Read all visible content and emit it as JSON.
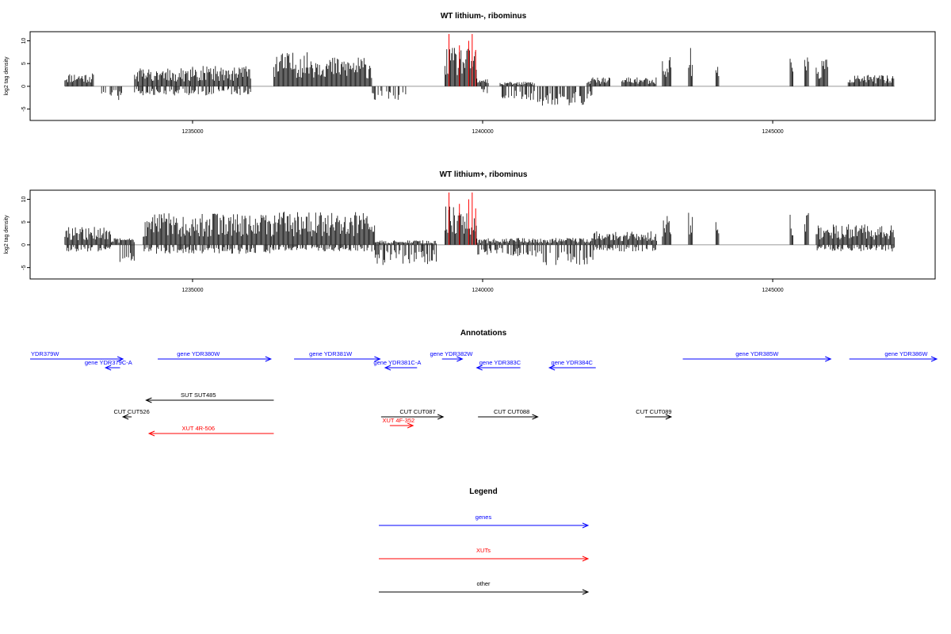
{
  "page": {
    "plot1_title": "WT lithium-, ribominus",
    "plot2_title": "WT lithium+, ribominus",
    "annotations_title": "Annotations",
    "legend_title": "Legend"
  },
  "chart_data": [
    {
      "type": "bar",
      "title": "WT lithium-, ribominus",
      "ylabel": "log2 tag density",
      "xlabel": "",
      "xlim": [
        1232200,
        1247800
      ],
      "ylim": [
        -7.5,
        12
      ],
      "x_ticks": [
        "1235000",
        "1240000",
        "1245000"
      ],
      "y_ticks": [
        "-5",
        "0",
        "5",
        "10"
      ],
      "grid": false,
      "series": [
        {
          "color": "#000000",
          "segments": [
            {
              "start": 1232800,
              "end": 1233300,
              "pos": 3,
              "neg": 0
            },
            {
              "start": 1233300,
              "end": 1233400,
              "pos": 0,
              "neg": 0
            },
            {
              "start": 1233400,
              "end": 1233800,
              "pos": 0,
              "neg": -3
            },
            {
              "start": 1234000,
              "end": 1235000,
              "pos": 4,
              "neg": -2
            },
            {
              "start": 1235000,
              "end": 1236000,
              "pos": 4.5,
              "neg": -2
            },
            {
              "start": 1236400,
              "end": 1237300,
              "pos": 7.5,
              "neg": 0
            },
            {
              "start": 1237300,
              "end": 1238100,
              "pos": 6.5,
              "neg": 0
            },
            {
              "start": 1238100,
              "end": 1238700,
              "pos": 0,
              "neg": -3
            },
            {
              "start": 1239350,
              "end": 1239900,
              "pos": 8.5,
              "neg": 0
            },
            {
              "start": 1239900,
              "end": 1240100,
              "pos": 2,
              "neg": -1.5
            },
            {
              "start": 1240300,
              "end": 1240900,
              "pos": 1,
              "neg": -3
            },
            {
              "start": 1240950,
              "end": 1241900,
              "pos": 0,
              "neg": -4.5
            },
            {
              "start": 1241800,
              "end": 1242200,
              "pos": 2,
              "neg": 0
            },
            {
              "start": 1242400,
              "end": 1243000,
              "pos": 2,
              "neg": 0
            },
            {
              "start": 1243100,
              "end": 1243250,
              "pos": 7,
              "neg": 0
            },
            {
              "start": 1243550,
              "end": 1243620,
              "pos": 9,
              "neg": 0
            },
            {
              "start": 1244020,
              "end": 1244080,
              "pos": 6,
              "neg": 0
            },
            {
              "start": 1245300,
              "end": 1245350,
              "pos": 7,
              "neg": 0
            },
            {
              "start": 1245550,
              "end": 1245620,
              "pos": 7,
              "neg": 0
            },
            {
              "start": 1245750,
              "end": 1245950,
              "pos": 6,
              "neg": 0
            },
            {
              "start": 1246300,
              "end": 1247100,
              "pos": 2.5,
              "neg": 0
            }
          ]
        },
        {
          "color": "#ff0000",
          "x": [
            1239420,
            1239600,
            1239760,
            1239820,
            1239880
          ],
          "y": [
            11.5,
            9,
            10,
            11.5,
            8
          ]
        }
      ]
    },
    {
      "type": "bar",
      "title": "WT lithium+, ribominus",
      "ylabel": "log2 tag density",
      "xlabel": "",
      "xlim": [
        1232200,
        1247800
      ],
      "ylim": [
        -7.5,
        12
      ],
      "x_ticks": [
        "1235000",
        "1240000",
        "1245000"
      ],
      "y_ticks": [
        "-5",
        "0",
        "5",
        "10"
      ],
      "grid": false,
      "series": [
        {
          "color": "#000000",
          "segments": [
            {
              "start": 1232800,
              "end": 1233600,
              "pos": 4,
              "neg": -1.5
            },
            {
              "start": 1233600,
              "end": 1234000,
              "pos": 1.5,
              "neg": -4.5
            },
            {
              "start": 1234150,
              "end": 1236400,
              "pos": 7,
              "neg": -2
            },
            {
              "start": 1236400,
              "end": 1238150,
              "pos": 7.5,
              "neg": -1.5
            },
            {
              "start": 1238150,
              "end": 1239200,
              "pos": 1,
              "neg": -4.5
            },
            {
              "start": 1239350,
              "end": 1239900,
              "pos": 9,
              "neg": 0
            },
            {
              "start": 1239900,
              "end": 1240900,
              "pos": 1.5,
              "neg": -2.5
            },
            {
              "start": 1240900,
              "end": 1241900,
              "pos": 1.5,
              "neg": -4.5
            },
            {
              "start": 1241900,
              "end": 1243000,
              "pos": 3,
              "neg": -1.5
            },
            {
              "start": 1243100,
              "end": 1243250,
              "pos": 7,
              "neg": 0
            },
            {
              "start": 1243550,
              "end": 1243620,
              "pos": 9,
              "neg": 0
            },
            {
              "start": 1244020,
              "end": 1244080,
              "pos": 6,
              "neg": 0
            },
            {
              "start": 1245300,
              "end": 1245350,
              "pos": 7,
              "neg": 0
            },
            {
              "start": 1245550,
              "end": 1245620,
              "pos": 7,
              "neg": 0
            },
            {
              "start": 1245750,
              "end": 1247100,
              "pos": 4.5,
              "neg": -1.5
            }
          ]
        },
        {
          "color": "#ff0000",
          "x": [
            1239420,
            1239600,
            1239760,
            1239820,
            1239880
          ],
          "y": [
            11.5,
            9,
            10,
            11.5,
            8
          ]
        }
      ]
    }
  ],
  "annotations": {
    "colors": {
      "gene": "#0000ff",
      "xut": "#ff0000",
      "other": "#000000"
    },
    "features": [
      {
        "label": "YDR379W",
        "kind": "gene",
        "start": 1232200,
        "end": 1233800,
        "strand": "+",
        "label_pos": 1232200,
        "level": 0
      },
      {
        "label": "gene YDR379C-A",
        "kind": "gene",
        "start": 1233500,
        "end": 1233750,
        "strand": "-",
        "label_pos": 1233550,
        "level": 1
      },
      {
        "label": "gene YDR380W",
        "kind": "gene",
        "start": 1234400,
        "end": 1236350,
        "strand": "+",
        "label_pos": 1235100,
        "level": 0
      },
      {
        "label": "gene YDR381W",
        "kind": "gene",
        "start": 1236750,
        "end": 1238230,
        "strand": "+",
        "label_pos": 1237380,
        "level": 0
      },
      {
        "label": "gene YDR381C-A",
        "kind": "gene",
        "start": 1238320,
        "end": 1238870,
        "strand": "-",
        "label_pos": 1238530,
        "level": 1
      },
      {
        "label": "gene YDR382W",
        "kind": "gene",
        "start": 1239300,
        "end": 1239650,
        "strand": "+",
        "label_pos": 1239460,
        "level": 0
      },
      {
        "label": "gene YDR383C",
        "kind": "gene",
        "start": 1239900,
        "end": 1240650,
        "strand": "-",
        "label_pos": 1240300,
        "level": 1
      },
      {
        "label": "gene YDR384C",
        "kind": "gene",
        "start": 1241150,
        "end": 1241950,
        "strand": "-",
        "label_pos": 1241540,
        "level": 1
      },
      {
        "label": "gene YDR385W",
        "kind": "gene",
        "start": 1243450,
        "end": 1246000,
        "strand": "+",
        "label_pos": 1244730,
        "level": 0
      },
      {
        "label": "gene YDR386W",
        "kind": "gene",
        "start": 1246320,
        "end": 1248000,
        "strand": "+",
        "label_pos": 1247300,
        "level": 0
      },
      {
        "label": "SUT SUT485",
        "kind": "other",
        "start": 1234200,
        "end": 1236400,
        "strand": "-",
        "label_pos": 1235100,
        "level": 2
      },
      {
        "label": "CUT CUT526",
        "kind": "other",
        "start": 1233800,
        "end": 1233950,
        "strand": "-",
        "label_pos": 1233950,
        "level": 3
      },
      {
        "label": "XUT 4R-506",
        "kind": "xut",
        "start": 1234250,
        "end": 1236400,
        "strand": "-",
        "label_pos": 1235100,
        "level": 4
      },
      {
        "label": "CUT CUT087",
        "kind": "other",
        "start": 1238250,
        "end": 1239320,
        "strand": "+",
        "label_pos": 1238880,
        "level": 3
      },
      {
        "label": "XUT 4F-352",
        "kind": "xut",
        "start": 1238400,
        "end": 1238800,
        "strand": "+",
        "label_pos": 1238550,
        "level": 5
      },
      {
        "label": "CUT CUT088",
        "kind": "other",
        "start": 1239920,
        "end": 1240950,
        "strand": "+",
        "label_pos": 1240500,
        "level": 3
      },
      {
        "label": "CUT CUT089",
        "kind": "other",
        "start": 1242800,
        "end": 1243250,
        "strand": "+",
        "label_pos": 1242950,
        "level": 3
      }
    ]
  },
  "legend": {
    "items": [
      {
        "label": "genes",
        "color": "#0000ff"
      },
      {
        "label": "XUTs",
        "color": "#ff0000"
      },
      {
        "label": "other",
        "color": "#000000"
      }
    ]
  }
}
